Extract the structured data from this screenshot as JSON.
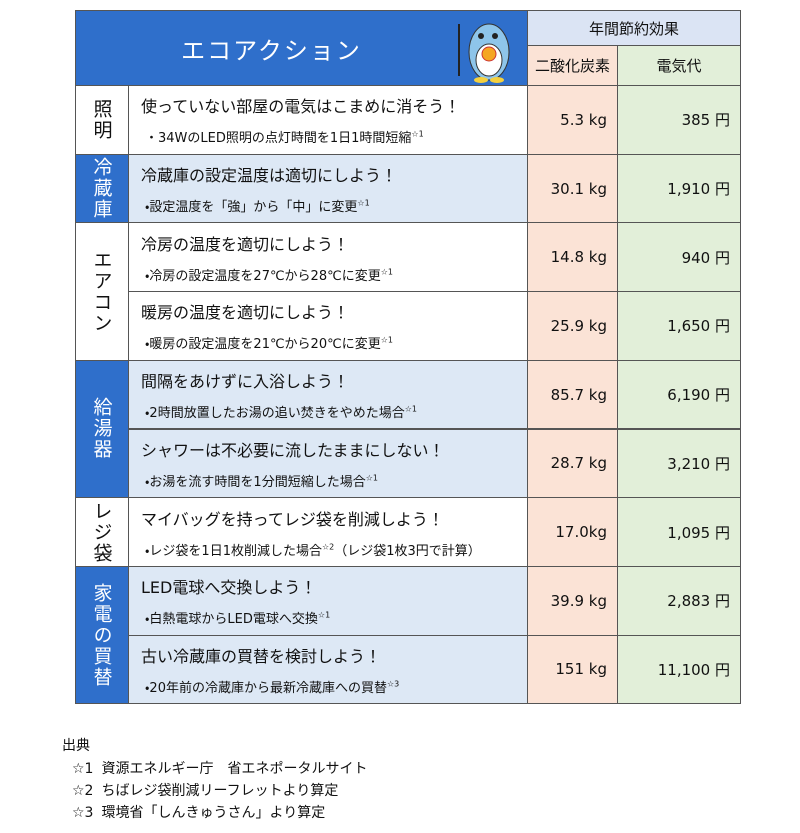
{
  "header": {
    "title": "エコアクション",
    "effect": "年間節約効果",
    "co2": "二酸化炭素",
    "yen": "電気代"
  },
  "groups": [
    {
      "category": "照明",
      "rows": [
        {
          "action": "使っていない部屋の電気はこまめに消そう！",
          "detail": "・34WのLED照明の点灯時間を1日1時間短縮",
          "note": "☆1",
          "co2": "5.3 kg",
          "yen": "385 円"
        }
      ]
    },
    {
      "category": "冷蔵庫",
      "rows": [
        {
          "action": "冷蔵庫の設定温度は適切にしよう！",
          "detail": "・設定温度を「強」から「中」に変更",
          "note": "☆1",
          "co2": "30.1 kg",
          "yen": "1,910 円"
        }
      ]
    },
    {
      "category": "エアコン",
      "rows": [
        {
          "action": "冷房の温度を適切にしよう！",
          "detail": "・冷房の設定温度を27℃から28℃に変更",
          "note": "☆1",
          "co2": "14.8 kg",
          "yen": "940 円"
        },
        {
          "action": "暖房の温度を適切にしよう！",
          "detail": "・暖房の設定温度を21℃から20℃に変更",
          "note": "☆1",
          "co2": "25.9 kg",
          "yen": "1,650 円"
        }
      ]
    },
    {
      "category": "給湯器",
      "rows": [
        {
          "action": "間隔をあけずに入浴しよう！",
          "detail": "・2時間放置したお湯の追い焚きをやめた場合",
          "note": "☆1",
          "co2": "85.7 kg",
          "yen": "6,190 円"
        },
        {
          "action": "シャワーは不必要に流したままにしない！",
          "detail": "・お湯を流す時間を1分間短縮した場合",
          "note": "☆1",
          "co2": "28.7 kg",
          "yen": "3,210 円"
        }
      ]
    },
    {
      "category": "レジ袋",
      "rows": [
        {
          "action": "マイバッグを持ってレジ袋を削減しよう！",
          "detail": "・レジ袋を1日1枚削減した場合",
          "note": "☆2",
          "tail": "（レジ袋1枚3円で計算）",
          "co2": "17.0kg",
          "yen": "1,095 円"
        }
      ]
    },
    {
      "category": "家電の買替",
      "rows": [
        {
          "action": "LED電球へ交換しよう！",
          "detail": "・白熱電球からLED電球へ交換",
          "note": "☆1",
          "co2": "39.9 kg",
          "yen": "2,883 円"
        },
        {
          "action": "古い冷蔵庫の買替を検討しよう！",
          "detail": "・20年前の冷蔵庫から最新冷蔵庫への買替",
          "note": "☆3",
          "co2": "151 kg",
          "yen": "11,100 円"
        }
      ]
    }
  ],
  "sources": {
    "title": "出典",
    "items": [
      {
        "mark": "☆1",
        "text": "資源エネルギー庁　省エネポータルサイト"
      },
      {
        "mark": "☆2",
        "text": "ちばレジ袋削減リーフレットより算定"
      },
      {
        "mark": "☆3",
        "text": "環境省「しんきゅうさん」より算定"
      }
    ]
  }
}
